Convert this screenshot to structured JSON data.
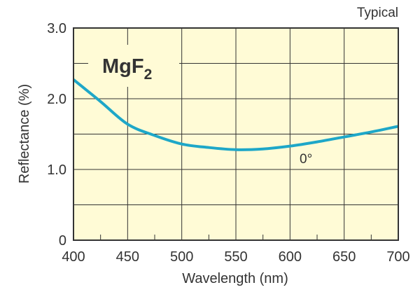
{
  "chart_data": {
    "type": "line",
    "title": "MgF2",
    "title_main": "MgF",
    "title_sub": "2",
    "note": "Typical",
    "xlabel": "Wavelength (nm)",
    "ylabel": "Reflectance (%)",
    "xlim": [
      400,
      700
    ],
    "ylim": [
      0,
      3.0
    ],
    "xticks": [
      400,
      450,
      500,
      550,
      600,
      650,
      700
    ],
    "xtick_labels": [
      "400",
      "450",
      "500",
      "550",
      "600",
      "650",
      "700"
    ],
    "yticks": [
      0,
      1.0,
      2.0,
      3.0
    ],
    "ytick_labels": [
      "0",
      "1.0",
      "2.0",
      "3.0"
    ],
    "grid": true,
    "colors": {
      "background": "#fffbd6",
      "line": "#1ea7c8",
      "grid": "#333333"
    },
    "series": [
      {
        "name": "0°",
        "x": [
          400,
          425,
          450,
          475,
          500,
          525,
          550,
          575,
          600,
          625,
          650,
          675,
          700
        ],
        "y": [
          2.27,
          1.96,
          1.64,
          1.48,
          1.36,
          1.31,
          1.28,
          1.29,
          1.33,
          1.39,
          1.46,
          1.53,
          1.61
        ]
      }
    ]
  }
}
